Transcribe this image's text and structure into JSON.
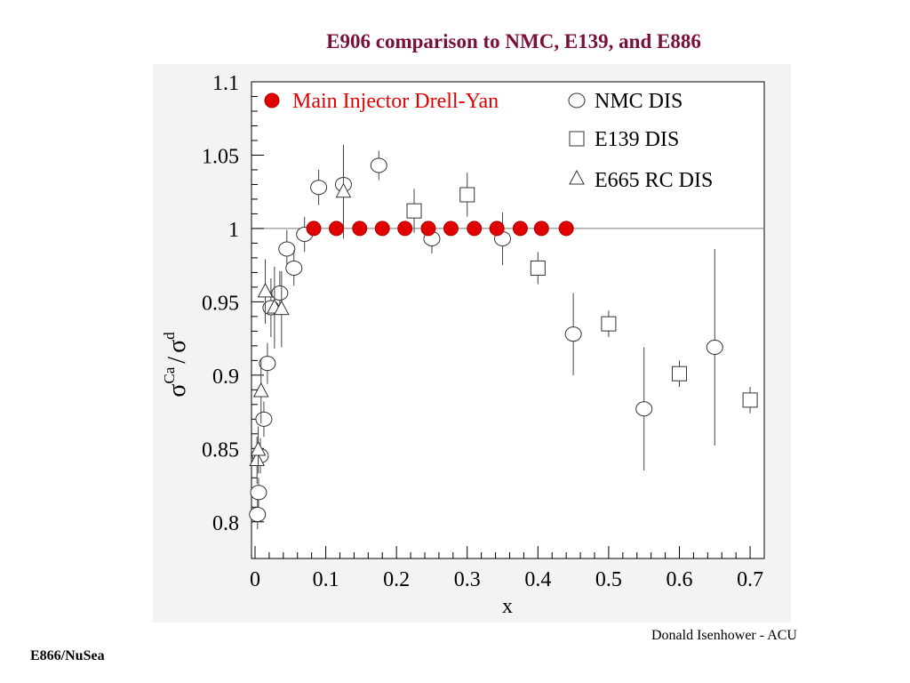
{
  "slide": {
    "title": "E906 comparison to NMC, E139, and E886",
    "author": "Donald Isenhower - ACU",
    "experiment": "E866/NuSea"
  },
  "colors": {
    "title": "#7a0f3c",
    "drell_yan": "#e00000",
    "open_markers": "#000000"
  },
  "chart_data": {
    "type": "scatter",
    "xlabel": "x",
    "ylabel": "σ^Ca / σ^d",
    "ylabel_parts": {
      "main1": "σ",
      "sup1": "Ca",
      "slash": "/",
      "main2": "σ",
      "sup2": "d"
    },
    "xlim": [
      -0.005,
      0.72
    ],
    "ylim": [
      0.775,
      1.1
    ],
    "xticks": [
      0,
      0.1,
      0.2,
      0.3,
      0.4,
      0.5,
      0.6,
      0.7
    ],
    "xtick_labels": [
      "0",
      "0.1",
      "0.2",
      "0.3",
      "0.4",
      "0.5",
      "0.6",
      "0.7"
    ],
    "yticks": [
      0.8,
      0.85,
      0.9,
      0.95,
      1.0,
      1.05,
      1.1
    ],
    "ytick_labels": [
      "0.8",
      "0.85",
      "0.9",
      "0.95",
      "1",
      "1.05",
      "1.1"
    ],
    "reference_line": 1.0,
    "grid": false,
    "legend_position": "top",
    "series": [
      {
        "name": "Main Injector Drell-Yan",
        "marker": "filled-circle",
        "x": [
          0.083,
          0.115,
          0.148,
          0.18,
          0.212,
          0.245,
          0.277,
          0.31,
          0.342,
          0.375,
          0.405,
          0.44
        ],
        "y": [
          1.0,
          1.0,
          1.0,
          1.0,
          1.0,
          1.0,
          1.0,
          1.0,
          1.0,
          1.0,
          1.0,
          1.0
        ],
        "err": [
          0.004,
          0.004,
          0.004,
          0.004,
          0.004,
          0.004,
          0.004,
          0.004,
          0.004,
          0.004,
          0.004,
          0.004
        ]
      },
      {
        "name": "NMC DIS",
        "marker": "open-circle",
        "x": [
          0.0035,
          0.005,
          0.0075,
          0.0125,
          0.0175,
          0.0225,
          0.035,
          0.045,
          0.055,
          0.07,
          0.09,
          0.125,
          0.175,
          0.25,
          0.35,
          0.45,
          0.55,
          0.65
        ],
        "y": [
          0.805,
          0.82,
          0.845,
          0.87,
          0.908,
          0.946,
          0.956,
          0.986,
          0.973,
          0.996,
          1.028,
          1.03,
          1.043,
          0.993,
          0.993,
          0.928,
          0.877,
          0.919
        ],
        "err": [
          0.01,
          0.01,
          0.012,
          0.012,
          0.014,
          0.02,
          0.015,
          0.013,
          0.012,
          0.012,
          0.012,
          0.026,
          0.01,
          0.01,
          0.018,
          0.028,
          0.042,
          0.067
        ]
      },
      {
        "name": "E139 DIS",
        "marker": "open-square",
        "x": [
          0.225,
          0.3,
          0.4,
          0.5,
          0.6,
          0.7
        ],
        "y": [
          1.012,
          1.023,
          0.973,
          0.935,
          0.901,
          0.883
        ],
        "err": [
          0.015,
          0.015,
          0.011,
          0.009,
          0.009,
          0.009
        ]
      },
      {
        "name": "E665 RC DIS",
        "marker": "open-triangle",
        "x": [
          0.0028,
          0.0045,
          0.0085,
          0.0145,
          0.0275,
          0.0375,
          0.125
        ],
        "y": [
          0.842,
          0.849,
          0.889,
          0.957,
          0.946,
          0.945,
          1.025
        ],
        "err": [
          0.016,
          0.016,
          0.022,
          0.022,
          0.028,
          0.026,
          0.032
        ]
      }
    ]
  }
}
